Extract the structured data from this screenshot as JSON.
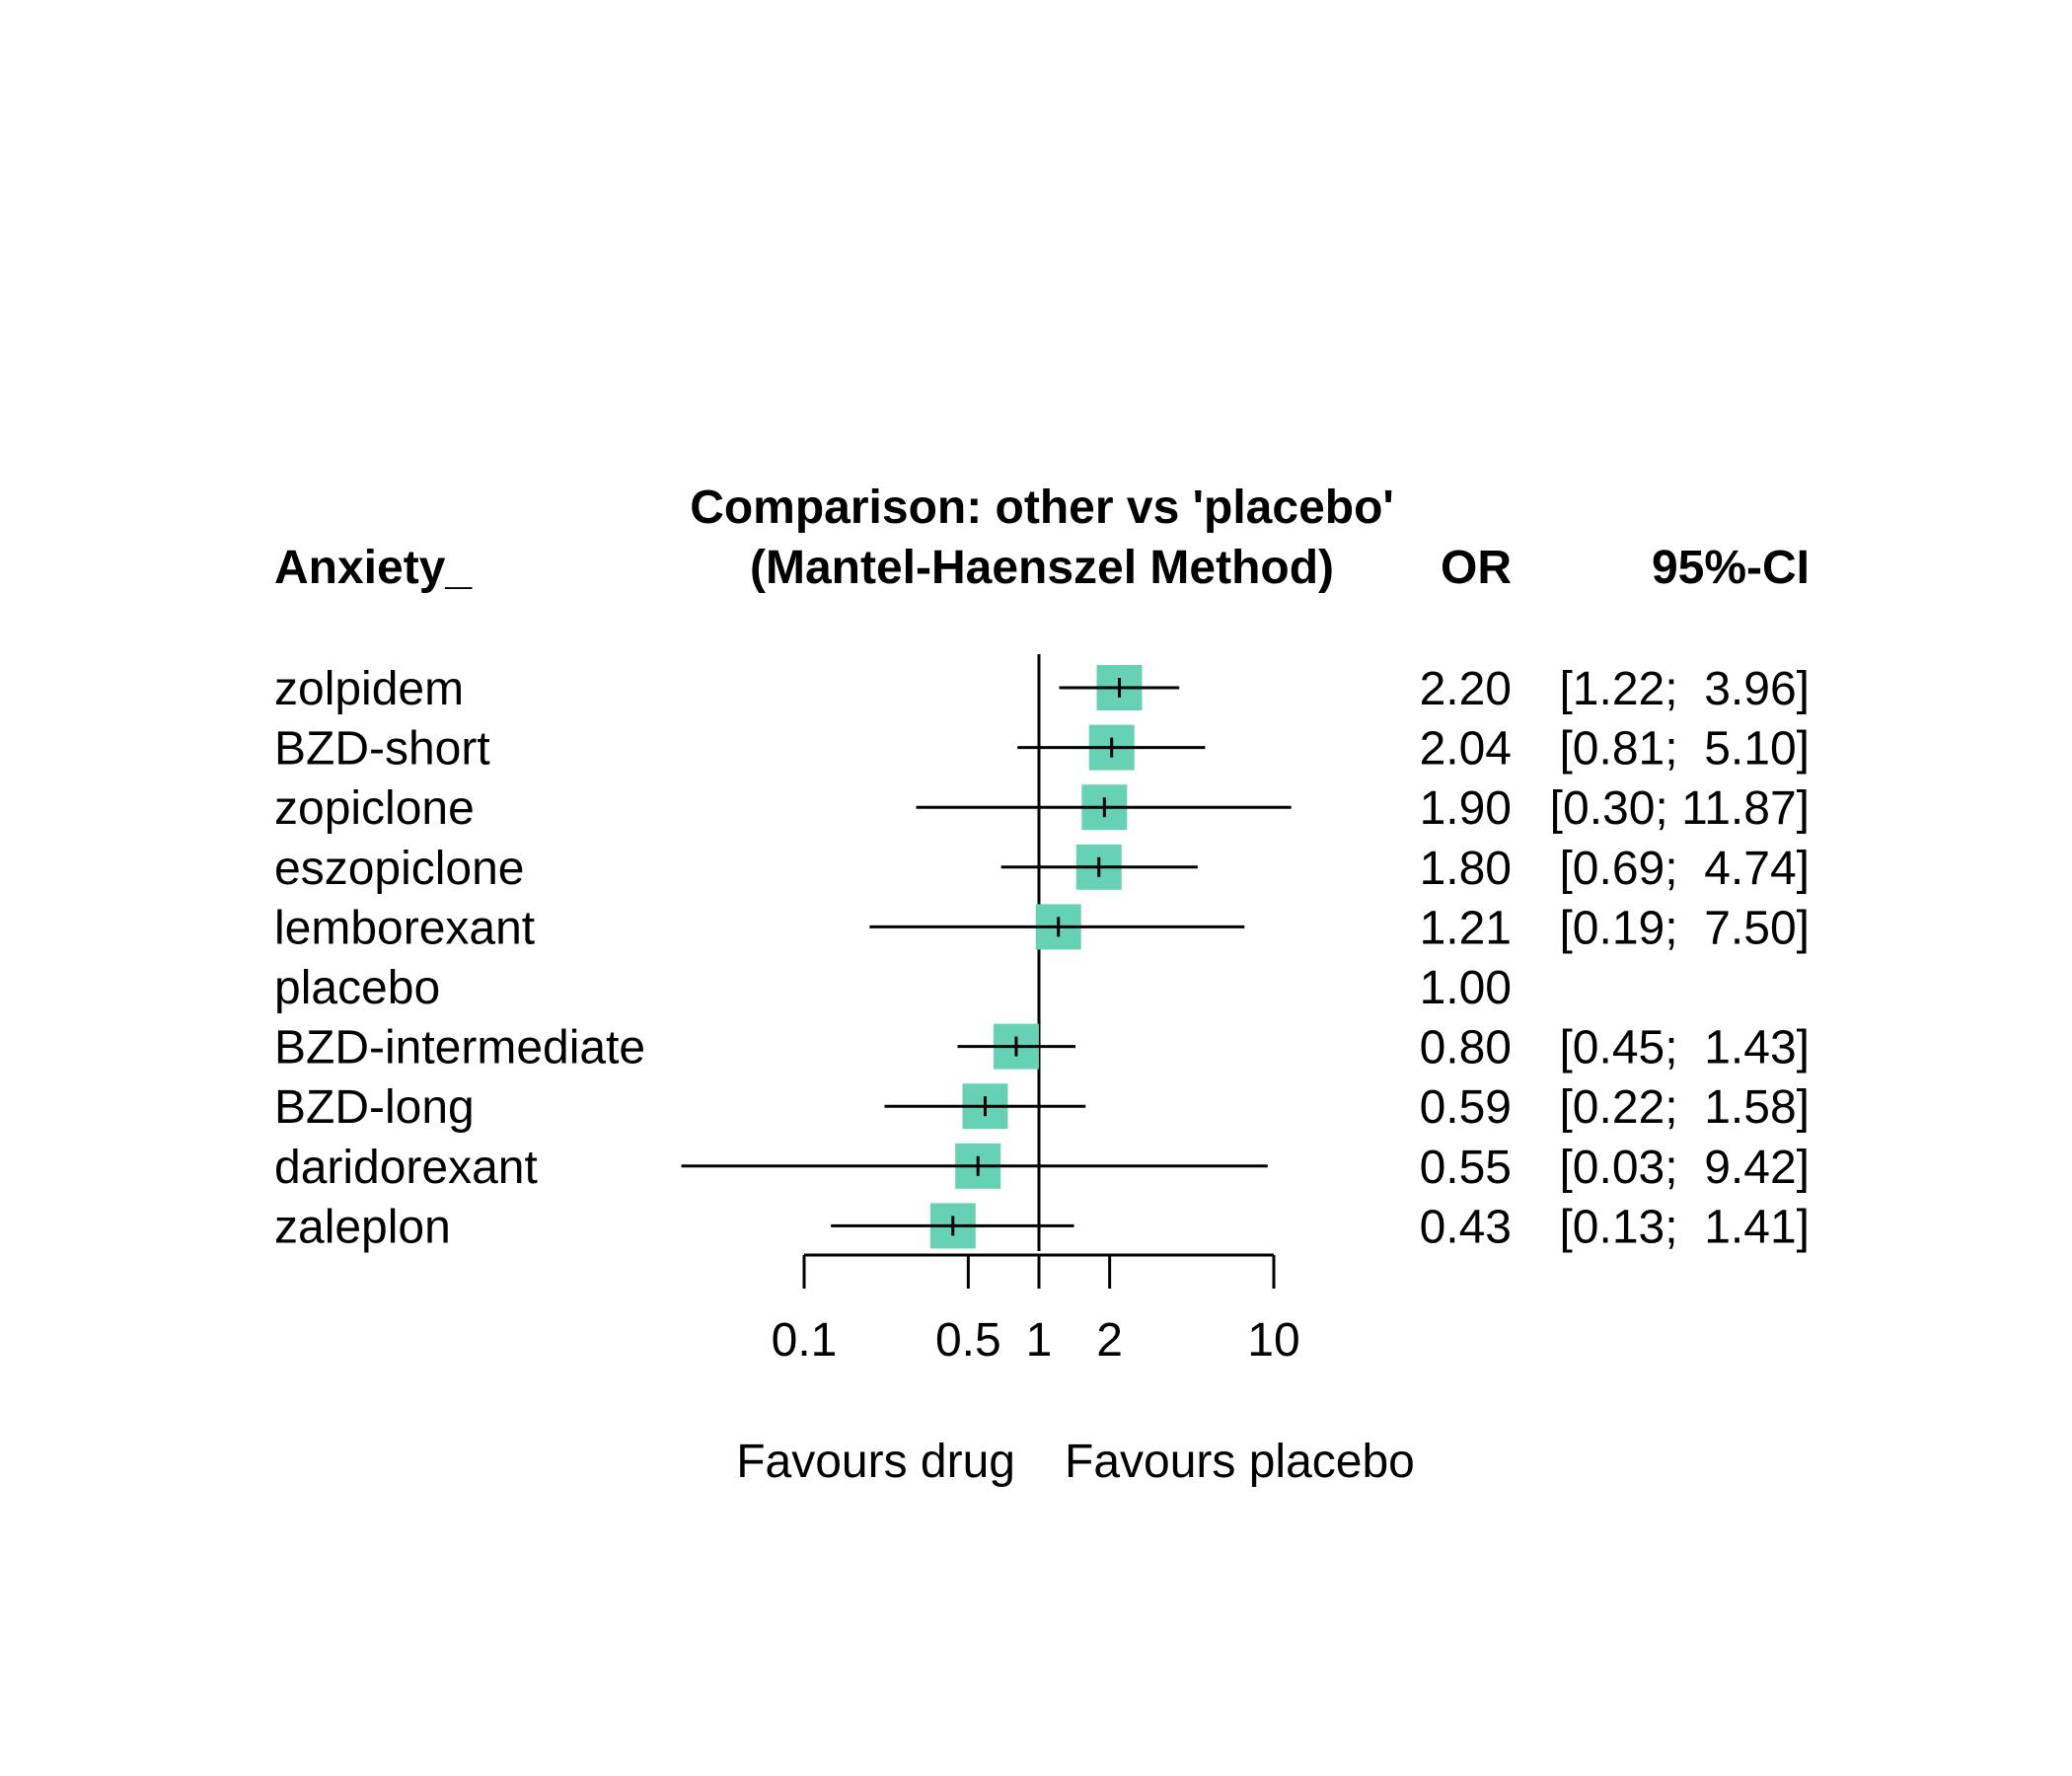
{
  "chart_data": {
    "type": "forest",
    "title": "Comparison: other vs 'placebo'",
    "subtitle": "(Mantel-Haenszel Method)",
    "column_headers": {
      "label": "Anxiety_",
      "estimate": "OR",
      "ci": "95%-CI"
    },
    "x_scale": "log",
    "xlim": [
      0.1,
      10
    ],
    "x_ticks": [
      {
        "value": 0.1,
        "label": "0.1"
      },
      {
        "value": 0.5,
        "label": "0.5"
      },
      {
        "value": 1,
        "label": "1"
      },
      {
        "value": 2,
        "label": "2"
      },
      {
        "value": 10,
        "label": "10"
      }
    ],
    "reference_line": 1,
    "favours_left": "Favours drug",
    "favours_right": "Favours placebo",
    "box_color": "#66D1B5",
    "rows": [
      {
        "name": "zolpidem",
        "or": 2.2,
        "lower": 1.22,
        "upper": 3.96,
        "or_text": "2.20",
        "ci_text": "[1.22;  3.96]"
      },
      {
        "name": "BZD-short",
        "or": 2.04,
        "lower": 0.81,
        "upper": 5.1,
        "or_text": "2.04",
        "ci_text": "[0.81;  5.10]"
      },
      {
        "name": "zopiclone",
        "or": 1.9,
        "lower": 0.3,
        "upper": 11.87,
        "or_text": "1.90",
        "ci_text": "[0.30; 11.87]"
      },
      {
        "name": "eszopiclone",
        "or": 1.8,
        "lower": 0.69,
        "upper": 4.74,
        "or_text": "1.80",
        "ci_text": "[0.69;  4.74]"
      },
      {
        "name": "lemborexant",
        "or": 1.21,
        "lower": 0.19,
        "upper": 7.5,
        "or_text": "1.21",
        "ci_text": "[0.19;  7.50]"
      },
      {
        "name": "placebo",
        "or": 1.0,
        "lower": null,
        "upper": null,
        "or_text": "1.00",
        "ci_text": ""
      },
      {
        "name": "BZD-intermediate",
        "or": 0.8,
        "lower": 0.45,
        "upper": 1.43,
        "or_text": "0.80",
        "ci_text": "[0.45;  1.43]"
      },
      {
        "name": "BZD-long",
        "or": 0.59,
        "lower": 0.22,
        "upper": 1.58,
        "or_text": "0.59",
        "ci_text": "[0.22;  1.58]"
      },
      {
        "name": "daridorexant",
        "or": 0.55,
        "lower": 0.03,
        "upper": 9.42,
        "or_text": "0.55",
        "ci_text": "[0.03;  9.42]"
      },
      {
        "name": "zaleplon",
        "or": 0.43,
        "lower": 0.13,
        "upper": 1.41,
        "or_text": "0.43",
        "ci_text": "[0.13;  1.41]"
      }
    ]
  }
}
